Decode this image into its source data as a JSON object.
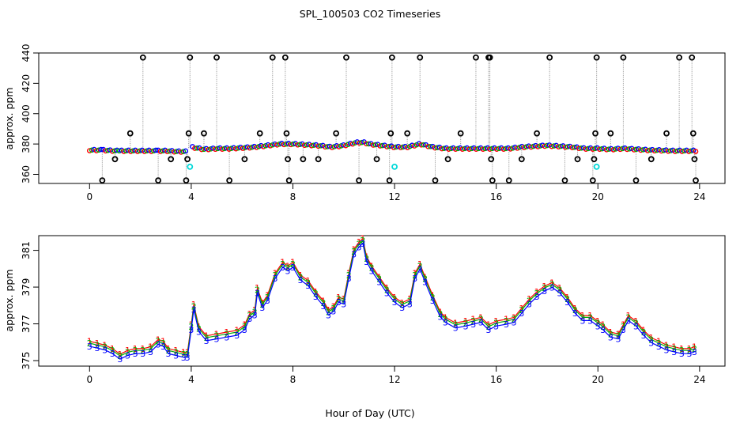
{
  "title": "SPL_100503  CO2 Timeseries",
  "xlabel": "Hour of Day (UTC)",
  "colors": {
    "axis": "#000000",
    "series1": "#ff0000",
    "series2": "#00b000",
    "series3": "#0000ff",
    "outlier": "#000000",
    "flag": "#00d8d8",
    "drop_line": "#888888"
  },
  "chart_data": [
    {
      "type": "scatter",
      "title": "SPL_100503  CO2 Timeseries",
      "xlabel": "",
      "ylabel": "approx. ppm",
      "xlim": [
        -2,
        25
      ],
      "ylim": [
        354,
        440
      ],
      "xticks": [
        0,
        4,
        8,
        12,
        16,
        20,
        24
      ],
      "yticks": [
        360,
        380,
        400,
        420,
        440
      ],
      "series_labels": [
        "1",
        "2",
        "3"
      ],
      "baseline": [
        [
          0,
          376
        ],
        [
          0.5,
          376
        ],
        [
          1,
          375.5
        ],
        [
          1.5,
          375.5
        ],
        [
          2,
          375.5
        ],
        [
          2.5,
          375.5
        ],
        [
          3,
          375.5
        ],
        [
          3.5,
          375
        ],
        [
          3.8,
          375
        ],
        [
          4,
          378
        ],
        [
          4.5,
          376.5
        ],
        [
          5,
          377
        ],
        [
          5.5,
          377
        ],
        [
          6,
          377.5
        ],
        [
          6.5,
          378
        ],
        [
          7,
          379
        ],
        [
          7.5,
          380
        ],
        [
          8,
          380
        ],
        [
          8.5,
          379.5
        ],
        [
          9,
          379
        ],
        [
          9.5,
          378
        ],
        [
          10,
          379
        ],
        [
          10.5,
          381
        ],
        [
          10.8,
          381
        ],
        [
          11,
          380
        ],
        [
          11.5,
          379
        ],
        [
          12,
          378
        ],
        [
          12.5,
          378
        ],
        [
          13,
          380
        ],
        [
          13.5,
          378
        ],
        [
          14,
          377
        ],
        [
          14.5,
          377
        ],
        [
          15,
          377
        ],
        [
          15.5,
          377
        ],
        [
          16,
          377
        ],
        [
          16.5,
          377
        ],
        [
          17,
          378
        ],
        [
          17.5,
          378.5
        ],
        [
          18,
          379
        ],
        [
          18.5,
          378.5
        ],
        [
          19,
          378
        ],
        [
          19.5,
          377
        ],
        [
          20,
          377
        ],
        [
          20.5,
          376.5
        ],
        [
          21,
          377
        ],
        [
          21.5,
          376.5
        ],
        [
          22,
          376
        ],
        [
          22.5,
          375.8
        ],
        [
          23,
          375.5
        ],
        [
          23.8,
          375.5
        ]
      ],
      "outliers": [
        {
          "x": 0.5,
          "y": 356
        },
        {
          "x": 1.0,
          "y": 370
        },
        {
          "x": 1.6,
          "y": 387
        },
        {
          "x": 2.1,
          "y": 437
        },
        {
          "x": 2.7,
          "y": 356
        },
        {
          "x": 3.2,
          "y": 370
        },
        {
          "x": 3.8,
          "y": 356
        },
        {
          "x": 3.85,
          "y": 370
        },
        {
          "x": 3.9,
          "y": 387
        },
        {
          "x": 3.95,
          "y": 437
        },
        {
          "x": 4.5,
          "y": 387
        },
        {
          "x": 5.0,
          "y": 437
        },
        {
          "x": 5.5,
          "y": 356
        },
        {
          "x": 6.1,
          "y": 370
        },
        {
          "x": 6.7,
          "y": 387
        },
        {
          "x": 7.2,
          "y": 437
        },
        {
          "x": 7.7,
          "y": 437
        },
        {
          "x": 7.75,
          "y": 387
        },
        {
          "x": 7.8,
          "y": 370
        },
        {
          "x": 7.85,
          "y": 356
        },
        {
          "x": 8.4,
          "y": 370
        },
        {
          "x": 9.0,
          "y": 370
        },
        {
          "x": 9.7,
          "y": 387
        },
        {
          "x": 10.1,
          "y": 437
        },
        {
          "x": 10.6,
          "y": 356
        },
        {
          "x": 11.3,
          "y": 370
        },
        {
          "x": 11.8,
          "y": 356
        },
        {
          "x": 11.85,
          "y": 387
        },
        {
          "x": 11.9,
          "y": 437
        },
        {
          "x": 12.5,
          "y": 387
        },
        {
          "x": 13.0,
          "y": 437
        },
        {
          "x": 13.6,
          "y": 356
        },
        {
          "x": 14.1,
          "y": 370
        },
        {
          "x": 14.6,
          "y": 387
        },
        {
          "x": 15.2,
          "y": 437
        },
        {
          "x": 15.7,
          "y": 437
        },
        {
          "x": 15.75,
          "y": 437
        },
        {
          "x": 15.8,
          "y": 370
        },
        {
          "x": 15.85,
          "y": 356
        },
        {
          "x": 16.5,
          "y": 356
        },
        {
          "x": 17.0,
          "y": 370
        },
        {
          "x": 17.6,
          "y": 387
        },
        {
          "x": 18.1,
          "y": 437
        },
        {
          "x": 18.7,
          "y": 356
        },
        {
          "x": 19.2,
          "y": 370
        },
        {
          "x": 19.8,
          "y": 356
        },
        {
          "x": 19.85,
          "y": 370
        },
        {
          "x": 19.9,
          "y": 387
        },
        {
          "x": 19.95,
          "y": 437
        },
        {
          "x": 20.5,
          "y": 387
        },
        {
          "x": 21.0,
          "y": 437
        },
        {
          "x": 21.5,
          "y": 356
        },
        {
          "x": 22.1,
          "y": 370
        },
        {
          "x": 22.7,
          "y": 387
        },
        {
          "x": 23.2,
          "y": 437
        },
        {
          "x": 23.7,
          "y": 437
        },
        {
          "x": 23.75,
          "y": 387
        },
        {
          "x": 23.8,
          "y": 370
        },
        {
          "x": 23.85,
          "y": 356
        }
      ],
      "flagged": [
        {
          "x": 3.95,
          "y": 365
        },
        {
          "x": 12.0,
          "y": 365
        },
        {
          "x": 19.95,
          "y": 365
        }
      ]
    },
    {
      "type": "line",
      "xlabel": "Hour of Day (UTC)",
      "ylabel": "approx. ppm",
      "xlim": [
        -2,
        25
      ],
      "ylim": [
        374.7,
        381.8
      ],
      "xticks": [
        0,
        4,
        8,
        12,
        16,
        20,
        24
      ],
      "yticks": [
        375,
        377,
        379,
        381
      ],
      "series": [
        {
          "name": "1",
          "offset": 0.15
        },
        {
          "name": "2",
          "offset": 0.05
        },
        {
          "name": "3",
          "offset": -0.12
        }
      ],
      "x": [
        0,
        0.3,
        0.6,
        0.9,
        1.2,
        1.5,
        1.8,
        2.1,
        2.4,
        2.7,
        2.9,
        3.1,
        3.4,
        3.7,
        3.85,
        4.0,
        4.1,
        4.3,
        4.6,
        5.0,
        5.4,
        5.8,
        6.1,
        6.3,
        6.5,
        6.6,
        6.8,
        7.0,
        7.3,
        7.6,
        7.8,
        8.0,
        8.3,
        8.6,
        8.9,
        9.2,
        9.4,
        9.6,
        9.8,
        10.0,
        10.2,
        10.4,
        10.6,
        10.75,
        10.9,
        11.1,
        11.4,
        11.7,
        12.0,
        12.3,
        12.6,
        12.8,
        13.0,
        13.2,
        13.5,
        13.8,
        14.0,
        14.4,
        14.8,
        15.1,
        15.4,
        15.7,
        16.0,
        16.4,
        16.7,
        17.0,
        17.3,
        17.6,
        17.9,
        18.2,
        18.5,
        18.8,
        19.1,
        19.4,
        19.7,
        20.0,
        20.2,
        20.5,
        20.8,
        21.0,
        21.2,
        21.5,
        21.8,
        22.1,
        22.4,
        22.7,
        23.0,
        23.3,
        23.6,
        23.8
      ],
      "y": [
        375.9,
        375.8,
        375.7,
        375.5,
        375.2,
        375.4,
        375.5,
        375.5,
        375.6,
        376.0,
        375.9,
        375.5,
        375.4,
        375.3,
        375.3,
        376.8,
        377.9,
        376.7,
        376.2,
        376.3,
        376.4,
        376.5,
        376.8,
        377.4,
        377.6,
        378.8,
        378.0,
        378.4,
        379.6,
        380.2,
        380.0,
        380.2,
        379.5,
        379.2,
        378.6,
        378.1,
        377.6,
        377.8,
        378.3,
        378.2,
        379.6,
        380.9,
        381.3,
        381.5,
        380.5,
        380.0,
        379.4,
        378.8,
        378.3,
        378.0,
        378.2,
        379.6,
        380.1,
        379.4,
        378.4,
        377.5,
        377.2,
        376.9,
        377.0,
        377.1,
        377.2,
        376.8,
        377.0,
        377.1,
        377.2,
        377.7,
        378.2,
        378.6,
        378.9,
        379.1,
        378.8,
        378.3,
        377.7,
        377.3,
        377.3,
        377.0,
        376.8,
        376.4,
        376.3,
        376.8,
        377.3,
        377.0,
        376.5,
        376.1,
        375.9,
        375.7,
        375.6,
        375.5,
        375.5,
        375.6
      ]
    }
  ]
}
